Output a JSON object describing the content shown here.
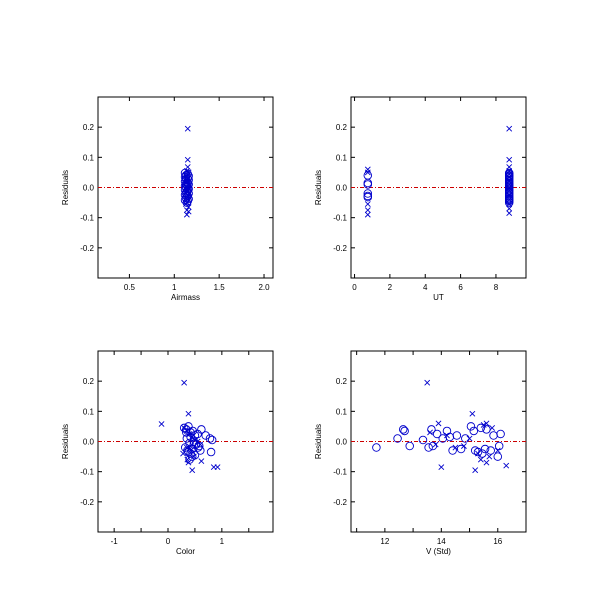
{
  "colors": {
    "points": "#0000cc",
    "zero_line": "#cc0000",
    "frame": "#000000",
    "background": "#ffffff"
  },
  "chart_data": [
    {
      "type": "scatter",
      "xlabel": "Airmass",
      "ylabel": "Residuals",
      "xlim": [
        0.15,
        2.1
      ],
      "ylim": [
        -0.3,
        0.3
      ],
      "xticks": [
        0.5,
        1.0,
        1.5,
        2.0
      ],
      "xtick_labels": [
        "0.5",
        "1",
        "1.5",
        "2.0"
      ],
      "yticks": [
        -0.2,
        -0.1,
        0.0,
        0.1,
        0.2
      ],
      "ytick_labels": [
        "-0.2",
        "-0.1",
        "0.0",
        "0.1",
        "0.2"
      ],
      "zero_line": 0,
      "grid": false,
      "series": [
        {
          "marker": "o",
          "x": [
            1.12,
            1.15,
            1.13,
            1.16,
            1.12,
            1.15,
            1.13,
            1.16,
            1.12,
            1.15,
            1.13,
            1.16,
            1.14,
            1.12,
            1.15,
            1.13,
            1.16,
            1.12,
            1.15,
            1.14,
            1.13,
            1.16,
            1.12,
            1.15,
            1.14,
            1.13,
            1.16,
            1.12,
            1.15,
            1.14
          ],
          "y": [
            0.048,
            0.045,
            0.04,
            0.038,
            0.035,
            0.03,
            0.028,
            0.025,
            0.02,
            0.015,
            0.012,
            0.01,
            0.008,
            0.005,
            0.002,
            0.0,
            -0.005,
            -0.008,
            -0.01,
            -0.015,
            -0.018,
            -0.02,
            -0.025,
            -0.028,
            -0.03,
            -0.035,
            -0.038,
            -0.042,
            -0.045,
            -0.05
          ]
        },
        {
          "marker": "x",
          "x": [
            1.15,
            1.15,
            1.15,
            1.14,
            1.16,
            1.13,
            1.15,
            1.14,
            1.16,
            1.14,
            1.15,
            1.13,
            1.16,
            1.15,
            1.14,
            1.13,
            1.16,
            1.14,
            1.16,
            1.14
          ],
          "y": [
            0.195,
            0.092,
            0.068,
            0.055,
            0.05,
            0.04,
            0.03,
            0.02,
            0.01,
            0.0,
            -0.01,
            -0.02,
            -0.03,
            -0.04,
            -0.05,
            -0.055,
            -0.065,
            -0.075,
            -0.08,
            -0.09
          ]
        }
      ]
    },
    {
      "type": "scatter",
      "xlabel": "UT",
      "ylabel": "Residuals",
      "xlim": [
        -0.2,
        9.7
      ],
      "ylim": [
        -0.3,
        0.3
      ],
      "xticks": [
        0,
        2,
        4,
        6,
        8
      ],
      "xtick_labels": [
        "0",
        "2",
        "4",
        "6",
        "8"
      ],
      "yticks": [
        -0.2,
        -0.1,
        0.0,
        0.1,
        0.2
      ],
      "ytick_labels": [
        "-0.2",
        "-0.1",
        "0.0",
        "0.1",
        "0.2"
      ],
      "zero_line": 0,
      "grid": false,
      "series": [
        {
          "marker": "o",
          "x": [
            0.75,
            0.75,
            0.75,
            0.75,
            0.75,
            0.75,
            8.75,
            8.75,
            8.75,
            8.75,
            8.75,
            8.75,
            8.75,
            8.75,
            8.75,
            8.75,
            8.75,
            8.75,
            8.75,
            8.75,
            8.75,
            8.75,
            8.75,
            8.75,
            8.75,
            8.75,
            8.75,
            8.75,
            8.75,
            8.75
          ],
          "y": [
            0.04,
            0.015,
            0.01,
            -0.02,
            -0.028,
            -0.032,
            0.048,
            0.045,
            0.04,
            0.038,
            0.035,
            0.03,
            0.025,
            0.02,
            0.015,
            0.012,
            0.008,
            0.005,
            0.0,
            -0.005,
            -0.01,
            -0.015,
            -0.02,
            -0.025,
            -0.03,
            -0.035,
            -0.038,
            -0.042,
            -0.045,
            -0.05
          ]
        },
        {
          "marker": "x",
          "x": [
            0.75,
            0.75,
            0.75,
            0.75,
            0.75,
            8.75,
            8.75,
            8.75,
            8.75,
            8.75,
            8.75,
            8.75,
            8.75,
            8.75,
            8.75,
            8.75,
            8.75,
            8.75,
            8.75,
            8.75
          ],
          "y": [
            0.06,
            0.05,
            -0.055,
            -0.075,
            -0.09,
            0.195,
            0.092,
            0.068,
            0.055,
            0.045,
            0.035,
            0.02,
            0.01,
            0.0,
            -0.01,
            -0.025,
            -0.04,
            -0.055,
            -0.07,
            -0.085
          ]
        }
      ]
    },
    {
      "type": "scatter",
      "xlabel": "Color",
      "ylabel": "Residuals",
      "xlim": [
        -1.3,
        1.95
      ],
      "ylim": [
        -0.3,
        0.3
      ],
      "xticks": [
        -1.0,
        -0.5,
        0.0,
        0.5,
        1.0,
        1.5
      ],
      "xtick_labels": [
        "-1",
        "",
        "0",
        "",
        "1",
        ""
      ],
      "yticks": [
        -0.2,
        -0.1,
        0.0,
        0.1,
        0.2
      ],
      "ytick_labels": [
        "-0.2",
        "-0.1",
        "0.0",
        "0.1",
        "0.2"
      ],
      "zero_line": 0,
      "grid": false,
      "series": [
        {
          "marker": "o",
          "x": [
            0.3,
            0.34,
            0.38,
            0.42,
            0.46,
            0.5,
            0.55,
            0.62,
            0.7,
            0.78,
            0.82,
            0.35,
            0.4,
            0.48,
            0.52,
            0.58,
            0.32,
            0.44,
            0.6,
            0.8,
            0.36,
            0.42,
            0.5,
            0.56,
            0.38,
            0.45,
            0.4,
            0.48,
            0.34,
            0.42
          ],
          "y": [
            0.045,
            0.04,
            0.05,
            0.03,
            0.035,
            0.02,
            0.025,
            0.04,
            0.02,
            0.01,
            0.005,
            0.01,
            -0.005,
            0.0,
            -0.01,
            -0.015,
            -0.02,
            -0.025,
            -0.03,
            -0.035,
            -0.03,
            -0.04,
            -0.045,
            -0.02,
            -0.035,
            -0.05,
            -0.06,
            -0.01,
            0.03,
            0.015
          ],
          "sizes": [
            1,
            1,
            1,
            1,
            1,
            1,
            1,
            1,
            1,
            1,
            1,
            1,
            1,
            1,
            1,
            1,
            1,
            1,
            1,
            1,
            1,
            1,
            1,
            1,
            1,
            1,
            1,
            1,
            1,
            1
          ]
        },
        {
          "marker": "x",
          "x": [
            0.3,
            -0.12,
            0.38,
            0.3,
            0.35,
            0.4,
            0.45,
            0.5,
            0.55,
            0.6,
            0.35,
            0.42,
            0.28,
            0.48,
            0.36,
            0.62,
            0.85,
            0.92,
            0.38,
            0.45
          ],
          "y": [
            0.195,
            0.058,
            0.092,
            0.045,
            0.035,
            0.025,
            0.015,
            0.005,
            0.0,
            -0.01,
            -0.02,
            -0.03,
            -0.04,
            -0.05,
            -0.06,
            -0.065,
            -0.085,
            -0.085,
            -0.07,
            -0.095
          ]
        }
      ]
    },
    {
      "type": "scatter",
      "xlabel": "V (Std)",
      "ylabel": "Residuals",
      "xlim": [
        10.8,
        17.0
      ],
      "ylim": [
        -0.3,
        0.3
      ],
      "xticks": [
        11,
        12,
        13,
        14,
        15,
        16
      ],
      "xtick_labels": [
        "",
        "12",
        "",
        "14",
        "",
        "16"
      ],
      "yticks": [
        -0.2,
        -0.1,
        0.0,
        0.1,
        0.2
      ],
      "ytick_labels": [
        "-0.2",
        "-0.1",
        "0.0",
        "0.1",
        "0.2"
      ],
      "zero_line": 0,
      "grid": false,
      "series": [
        {
          "marker": "o",
          "x": [
            11.7,
            12.45,
            12.65,
            12.7,
            12.88,
            13.35,
            13.55,
            13.65,
            13.7,
            13.85,
            14.05,
            14.2,
            14.3,
            14.4,
            14.55,
            14.7,
            14.85,
            15.05,
            15.15,
            15.2,
            15.3,
            15.4,
            15.45,
            15.55,
            15.6,
            15.75,
            15.85,
            16.0,
            16.05,
            16.1
          ],
          "y": [
            -0.02,
            0.01,
            0.04,
            0.035,
            -0.015,
            0.005,
            -0.02,
            0.04,
            -0.015,
            0.025,
            0.01,
            0.035,
            0.015,
            -0.03,
            0.02,
            -0.025,
            0.01,
            0.05,
            0.035,
            -0.03,
            -0.035,
            0.045,
            -0.04,
            -0.025,
            0.04,
            -0.03,
            0.02,
            -0.05,
            -0.015,
            0.025
          ]
        },
        {
          "marker": "x",
          "x": [
            13.5,
            13.9,
            14.0,
            15.1,
            15.2,
            15.5,
            15.6,
            15.7,
            16.3,
            13.6,
            14.5,
            15.0,
            15.4,
            15.8,
            16.0,
            14.2,
            13.8,
            15.3,
            15.6,
            14.8
          ],
          "y": [
            0.195,
            0.06,
            -0.085,
            0.092,
            -0.095,
            0.055,
            -0.07,
            -0.05,
            -0.08,
            0.03,
            -0.02,
            0.01,
            -0.06,
            0.045,
            -0.03,
            0.02,
            -0.01,
            -0.04,
            0.06,
            -0.015
          ]
        }
      ]
    }
  ]
}
